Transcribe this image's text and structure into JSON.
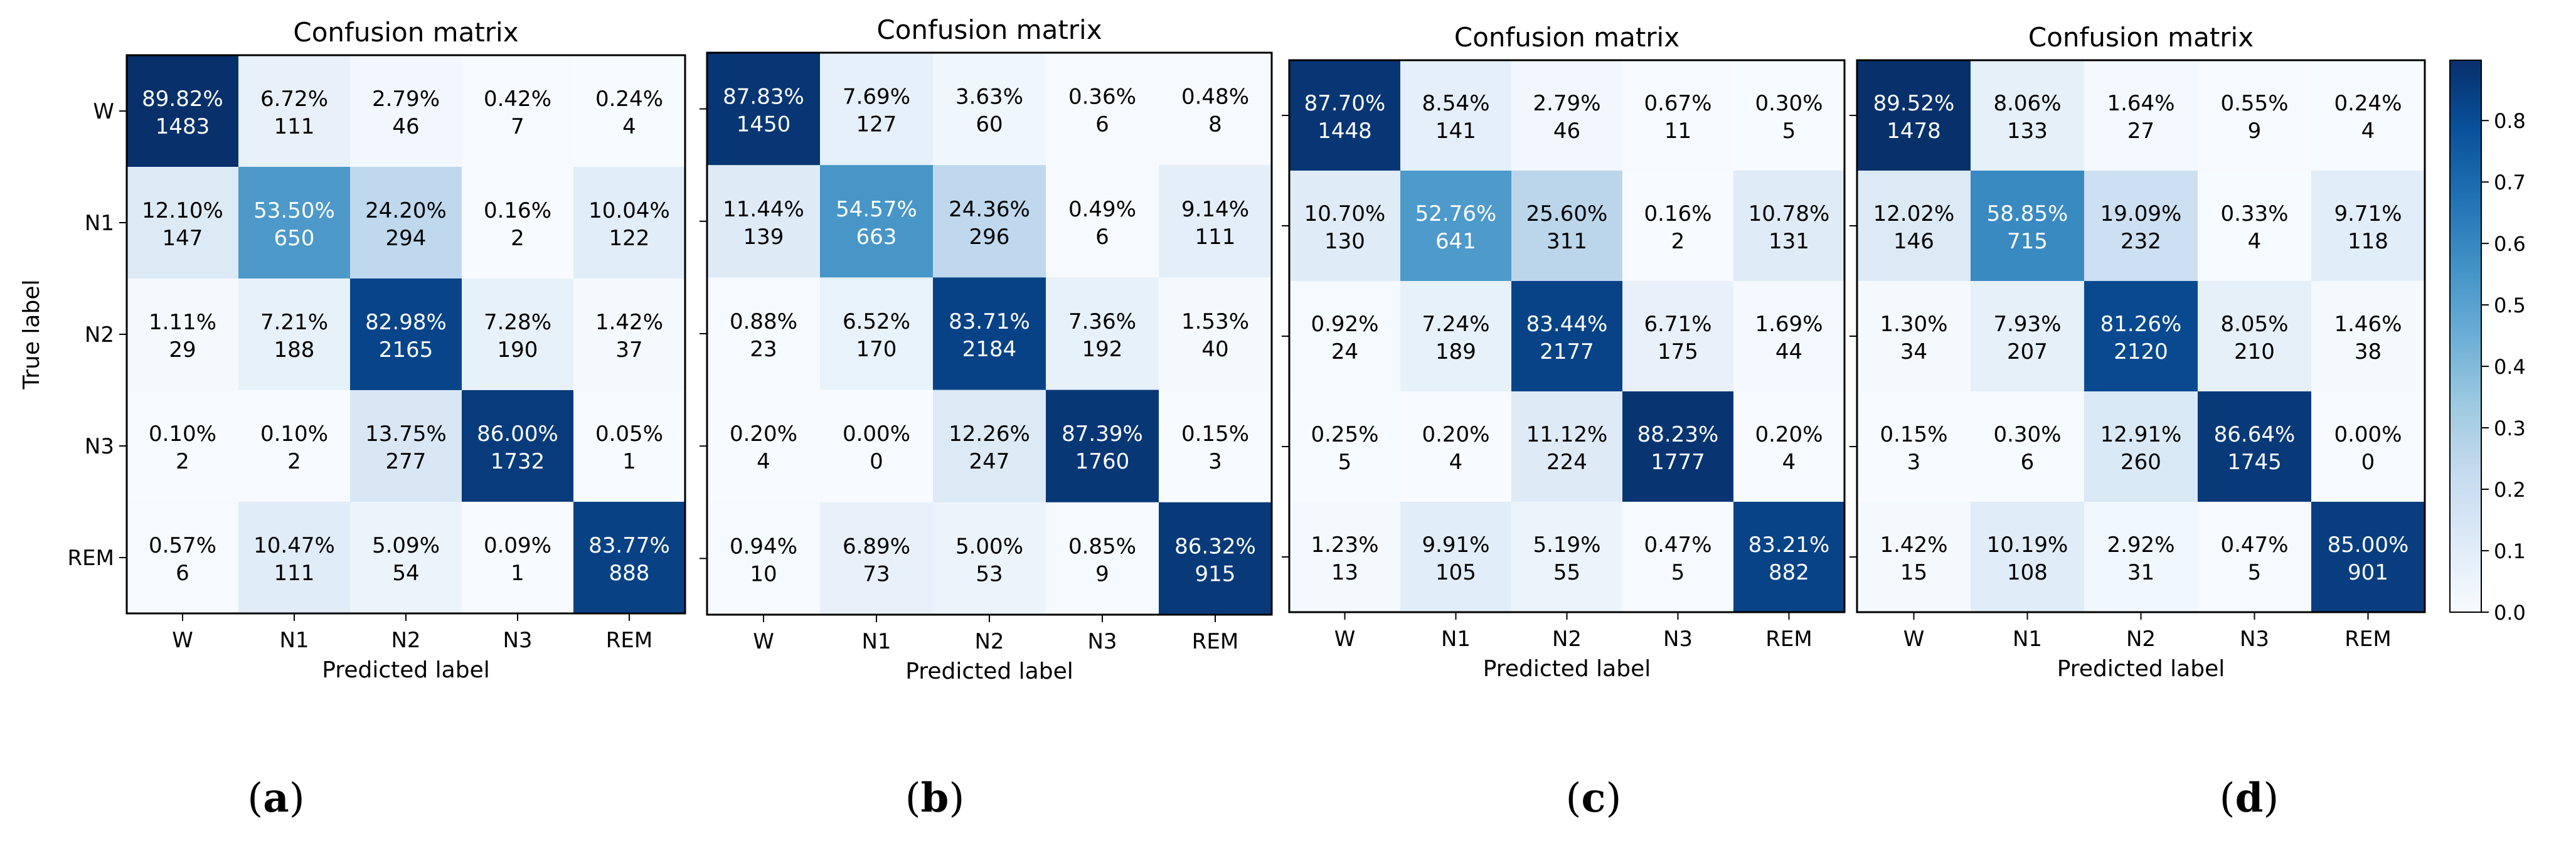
{
  "chart_data": [
    {
      "type": "heatmap",
      "panel": "a",
      "title": "Confusion matrix",
      "xlabel": "Predicted label",
      "ylabel": "True label",
      "classes": [
        "W",
        "N1",
        "N2",
        "N3",
        "REM"
      ],
      "percent": [
        [
          "89.82%",
          "6.72%",
          "2.79%",
          "0.42%",
          "0.24%"
        ],
        [
          "12.10%",
          "53.50%",
          "24.20%",
          "0.16%",
          "10.04%"
        ],
        [
          "1.11%",
          "7.21%",
          "82.98%",
          "7.28%",
          "1.42%"
        ],
        [
          "0.10%",
          "0.10%",
          "13.75%",
          "86.00%",
          "0.05%"
        ],
        [
          "0.57%",
          "10.47%",
          "5.09%",
          "0.09%",
          "83.77%"
        ]
      ],
      "counts": [
        [
          1483,
          111,
          46,
          7,
          4
        ],
        [
          147,
          650,
          294,
          2,
          122
        ],
        [
          29,
          188,
          2165,
          190,
          37
        ],
        [
          2,
          2,
          277,
          1732,
          1
        ],
        [
          6,
          111,
          54,
          1,
          888
        ]
      ]
    },
    {
      "type": "heatmap",
      "panel": "b",
      "title": "Confusion matrix",
      "xlabel": "Predicted label",
      "ylabel": "",
      "classes": [
        "W",
        "N1",
        "N2",
        "N3",
        "REM"
      ],
      "percent": [
        [
          "87.83%",
          "7.69%",
          "3.63%",
          "0.36%",
          "0.48%"
        ],
        [
          "11.44%",
          "54.57%",
          "24.36%",
          "0.49%",
          "9.14%"
        ],
        [
          "0.88%",
          "6.52%",
          "83.71%",
          "7.36%",
          "1.53%"
        ],
        [
          "0.20%",
          "0.00%",
          "12.26%",
          "87.39%",
          "0.15%"
        ],
        [
          "0.94%",
          "6.89%",
          "5.00%",
          "0.85%",
          "86.32%"
        ]
      ],
      "counts": [
        [
          1450,
          127,
          60,
          6,
          8
        ],
        [
          139,
          663,
          296,
          6,
          111
        ],
        [
          23,
          170,
          2184,
          192,
          40
        ],
        [
          4,
          0,
          247,
          1760,
          3
        ],
        [
          10,
          73,
          53,
          9,
          915
        ]
      ]
    },
    {
      "type": "heatmap",
      "panel": "c",
      "title": "Confusion matrix",
      "xlabel": "Predicted label",
      "ylabel": "",
      "classes": [
        "W",
        "N1",
        "N2",
        "N3",
        "REM"
      ],
      "percent": [
        [
          "87.70%",
          "8.54%",
          "2.79%",
          "0.67%",
          "0.30%"
        ],
        [
          "10.70%",
          "52.76%",
          "25.60%",
          "0.16%",
          "10.78%"
        ],
        [
          "0.92%",
          "7.24%",
          "83.44%",
          "6.71%",
          "1.69%"
        ],
        [
          "0.25%",
          "0.20%",
          "11.12%",
          "88.23%",
          "0.20%"
        ],
        [
          "1.23%",
          "9.91%",
          "5.19%",
          "0.47%",
          "83.21%"
        ]
      ],
      "counts": [
        [
          1448,
          141,
          46,
          11,
          5
        ],
        [
          130,
          641,
          311,
          2,
          131
        ],
        [
          24,
          189,
          2177,
          175,
          44
        ],
        [
          5,
          4,
          224,
          1777,
          4
        ],
        [
          13,
          105,
          55,
          5,
          882
        ]
      ]
    },
    {
      "type": "heatmap",
      "panel": "d",
      "title": "Confusion matrix",
      "xlabel": "Predicted label",
      "ylabel": "",
      "classes": [
        "W",
        "N1",
        "N2",
        "N3",
        "REM"
      ],
      "percent": [
        [
          "89.52%",
          "8.06%",
          "1.64%",
          "0.55%",
          "0.24%"
        ],
        [
          "12.02%",
          "58.85%",
          "19.09%",
          "0.33%",
          "9.71%"
        ],
        [
          "1.30%",
          "7.93%",
          "81.26%",
          "8.05%",
          "1.46%"
        ],
        [
          "0.15%",
          "0.30%",
          "12.91%",
          "86.64%",
          "0.00%"
        ],
        [
          "1.42%",
          "10.19%",
          "2.92%",
          "0.47%",
          "85.00%"
        ]
      ],
      "counts": [
        [
          1478,
          133,
          27,
          9,
          4
        ],
        [
          146,
          715,
          232,
          4,
          118
        ],
        [
          34,
          207,
          2120,
          210,
          38
        ],
        [
          3,
          6,
          260,
          1745,
          0
        ],
        [
          15,
          108,
          31,
          5,
          901
        ]
      ]
    }
  ],
  "colorbar": {
    "ticks": [
      "0.0",
      "0.1",
      "0.2",
      "0.3",
      "0.4",
      "0.5",
      "0.6",
      "0.7",
      "0.8"
    ],
    "tick_values": [
      0,
      0.1,
      0.2,
      0.3,
      0.4,
      0.5,
      0.6,
      0.7,
      0.8
    ],
    "range": [
      0,
      0.8982
    ],
    "colormap": "Blues",
    "color_low": "#f7fbff",
    "color_high": "#08306b"
  },
  "captions": [
    "a",
    "b",
    "c",
    "d"
  ]
}
